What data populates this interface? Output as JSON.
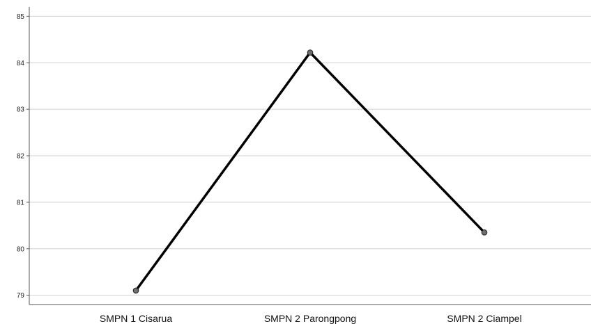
{
  "chart_data": {
    "type": "line",
    "categories": [
      "SMPN 1 Cisarua",
      "SMPN 2 Parongpong",
      "SMPN 2 Ciampel"
    ],
    "values": [
      79.1,
      84.22,
      80.35
    ],
    "ylim": [
      78.8,
      85.2
    ],
    "yticks": [
      79,
      80,
      81,
      82,
      83,
      84,
      85
    ],
    "grid": "horizontal",
    "line_color": "#000000",
    "marker_color": "#6e6e6e"
  }
}
